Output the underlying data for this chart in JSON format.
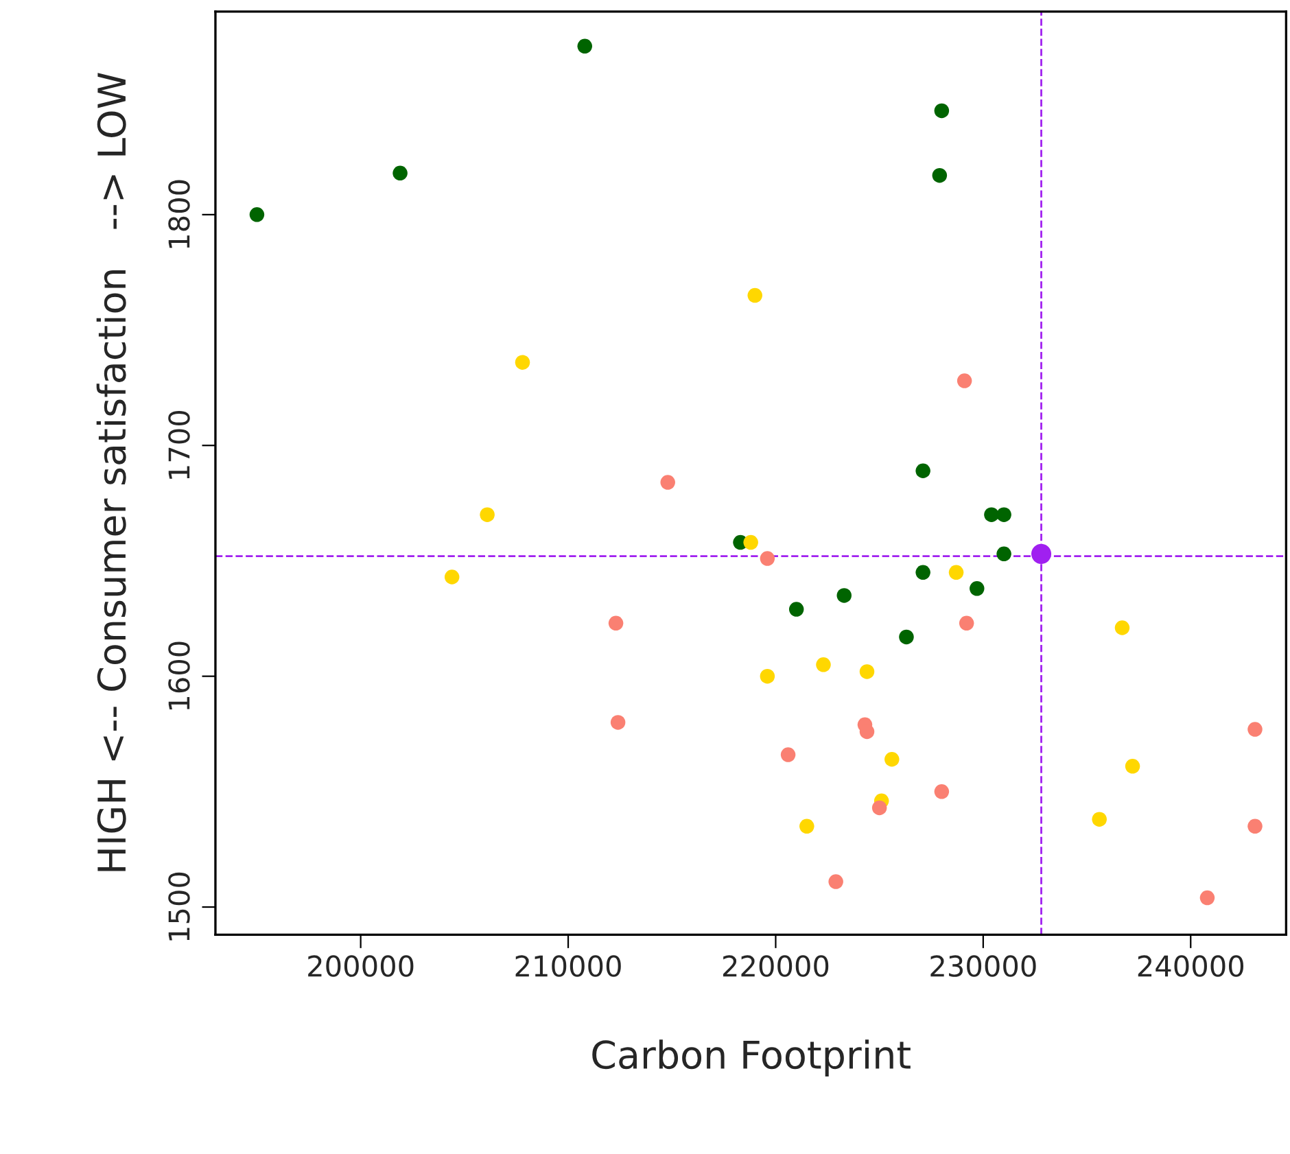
{
  "chart_data": {
    "type": "scatter",
    "xlabel": "Carbon Footprint",
    "ylabel": "HIGH <-- Consumer satisfaction   --> LOW",
    "xlim": [
      193000,
      244600
    ],
    "ylim": [
      1488,
      1888
    ],
    "xticks": [
      200000,
      210000,
      220000,
      230000,
      240000
    ],
    "yticks": [
      1500,
      1600,
      1700,
      1800
    ],
    "grid": false,
    "legend": false,
    "marker": "circle",
    "series": [
      {
        "color": "#006400",
        "x": [
          195000,
          201900,
          210800,
          228000,
          227900,
          227100,
          218300,
          221000,
          223300,
          226300,
          227100,
          229700,
          230400,
          231000,
          231000
        ],
        "values": [
          1800,
          1818,
          1873,
          1845,
          1817,
          1689,
          1658,
          1629,
          1635,
          1617,
          1645,
          1638,
          1670,
          1670,
          1653
        ]
      },
      {
        "color": "#ffd700",
        "x": [
          204400,
          206100,
          207800,
          219000,
          218800,
          219600,
          222300,
          224400,
          225600,
          225100,
          221500,
          228700,
          236700,
          237200,
          235600
        ],
        "values": [
          1643,
          1670,
          1736,
          1765,
          1658,
          1600,
          1605,
          1602,
          1564,
          1546,
          1535,
          1645,
          1621,
          1561,
          1538
        ]
      },
      {
        "color": "#fa8072",
        "x": [
          229100,
          214800,
          219600,
          212300,
          212400,
          229200,
          224300,
          224400,
          220600,
          225000,
          228000,
          222900,
          240800,
          243100,
          243100
        ],
        "values": [
          1728,
          1684,
          1651,
          1623,
          1580,
          1623,
          1579,
          1576,
          1566,
          1543,
          1550,
          1511,
          1504,
          1577,
          1535
        ]
      },
      {
        "color": "#a020f0",
        "x": [
          232800
        ],
        "values": [
          1653
        ]
      }
    ],
    "ref_lines": [
      {
        "axis": "x",
        "value": 232800,
        "color": "#a020f0",
        "line_style": "dashed"
      },
      {
        "axis": "y",
        "value": 1652,
        "color": "#a020f0",
        "line_style": "dashed"
      }
    ]
  }
}
